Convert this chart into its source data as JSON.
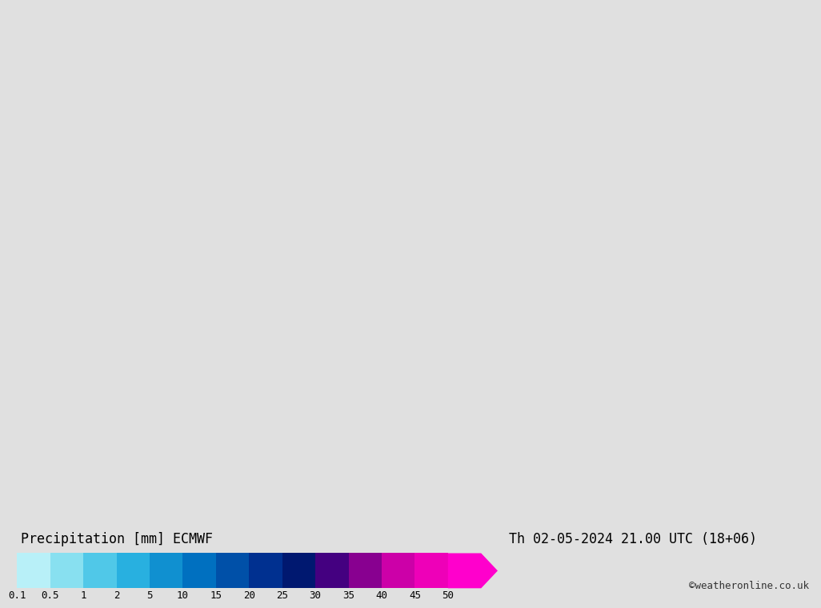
{
  "title_left": "Precipitation [mm] ECMWF",
  "title_right": "Th 02-05-2024 21.00 UTC (18+06)",
  "credit": "©weatheronline.co.uk",
  "colorbar_labels": [
    "0.1",
    "0.5",
    "1",
    "2",
    "5",
    "10",
    "15",
    "20",
    "25",
    "30",
    "35",
    "40",
    "45",
    "50"
  ],
  "colorbar_colors": [
    "#b8f0f8",
    "#88e0f0",
    "#50c8e8",
    "#28b0e0",
    "#1090d0",
    "#0070c0",
    "#0050a8",
    "#003090",
    "#001870",
    "#440080",
    "#880090",
    "#cc00a8",
    "#ee00b8",
    "#ff00cc"
  ],
  "bg_color": "#e0e0e0",
  "ocean_color": "#e0e0e0",
  "land_green": "#c0f090",
  "land_no_precip": "#d8d8d8",
  "border_color": "#404040",
  "coast_color": "#808080",
  "precip_colors": {
    "light": "#b8eef8",
    "medium_light": "#88dcf0",
    "medium": "#50c0e0",
    "medium_dark": "#2898d0",
    "dark": "#1070b8"
  },
  "extent": [
    0,
    40,
    54,
    73
  ],
  "fig_width": 10.0,
  "fig_height": 7.33
}
